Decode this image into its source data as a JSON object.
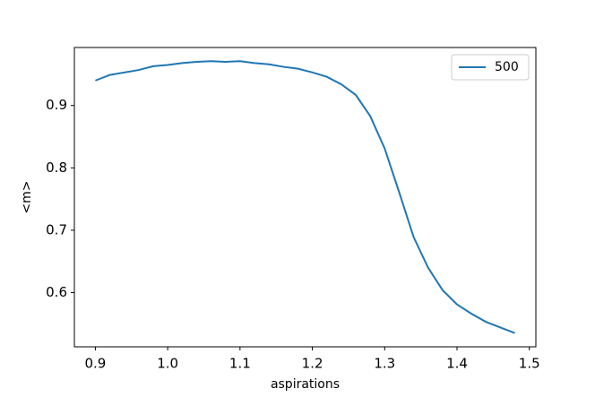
{
  "chart_data": {
    "type": "line",
    "xlabel": "aspirations",
    "ylabel": "<m>",
    "x": [
      0.9,
      0.92,
      0.94,
      0.96,
      0.98,
      1.0,
      1.02,
      1.04,
      1.06,
      1.08,
      1.1,
      1.12,
      1.14,
      1.16,
      1.18,
      1.2,
      1.22,
      1.24,
      1.26,
      1.28,
      1.3,
      1.32,
      1.34,
      1.36,
      1.38,
      1.4,
      1.42,
      1.44,
      1.46,
      1.48
    ],
    "series": [
      {
        "name": "500",
        "color": "#1f77b4",
        "values": [
          0.94,
          0.949,
          0.953,
          0.957,
          0.963,
          0.965,
          0.968,
          0.97,
          0.971,
          0.97,
          0.971,
          0.968,
          0.966,
          0.962,
          0.959,
          0.953,
          0.946,
          0.934,
          0.917,
          0.883,
          0.831,
          0.761,
          0.689,
          0.64,
          0.604,
          0.581,
          0.566,
          0.553,
          0.544,
          0.535
        ]
      }
    ],
    "xlim": [
      0.871,
      1.509
    ],
    "ylim": [
      0.513,
      0.993
    ],
    "xticks": [
      0.9,
      {
        "value": 1.0,
        "label": "1.0"
      },
      1.1,
      1.2,
      1.3,
      1.4,
      1.5
    ],
    "yticks": [
      0.6,
      0.7,
      0.8,
      0.9
    ],
    "legend": "upper right",
    "grid": false
  }
}
